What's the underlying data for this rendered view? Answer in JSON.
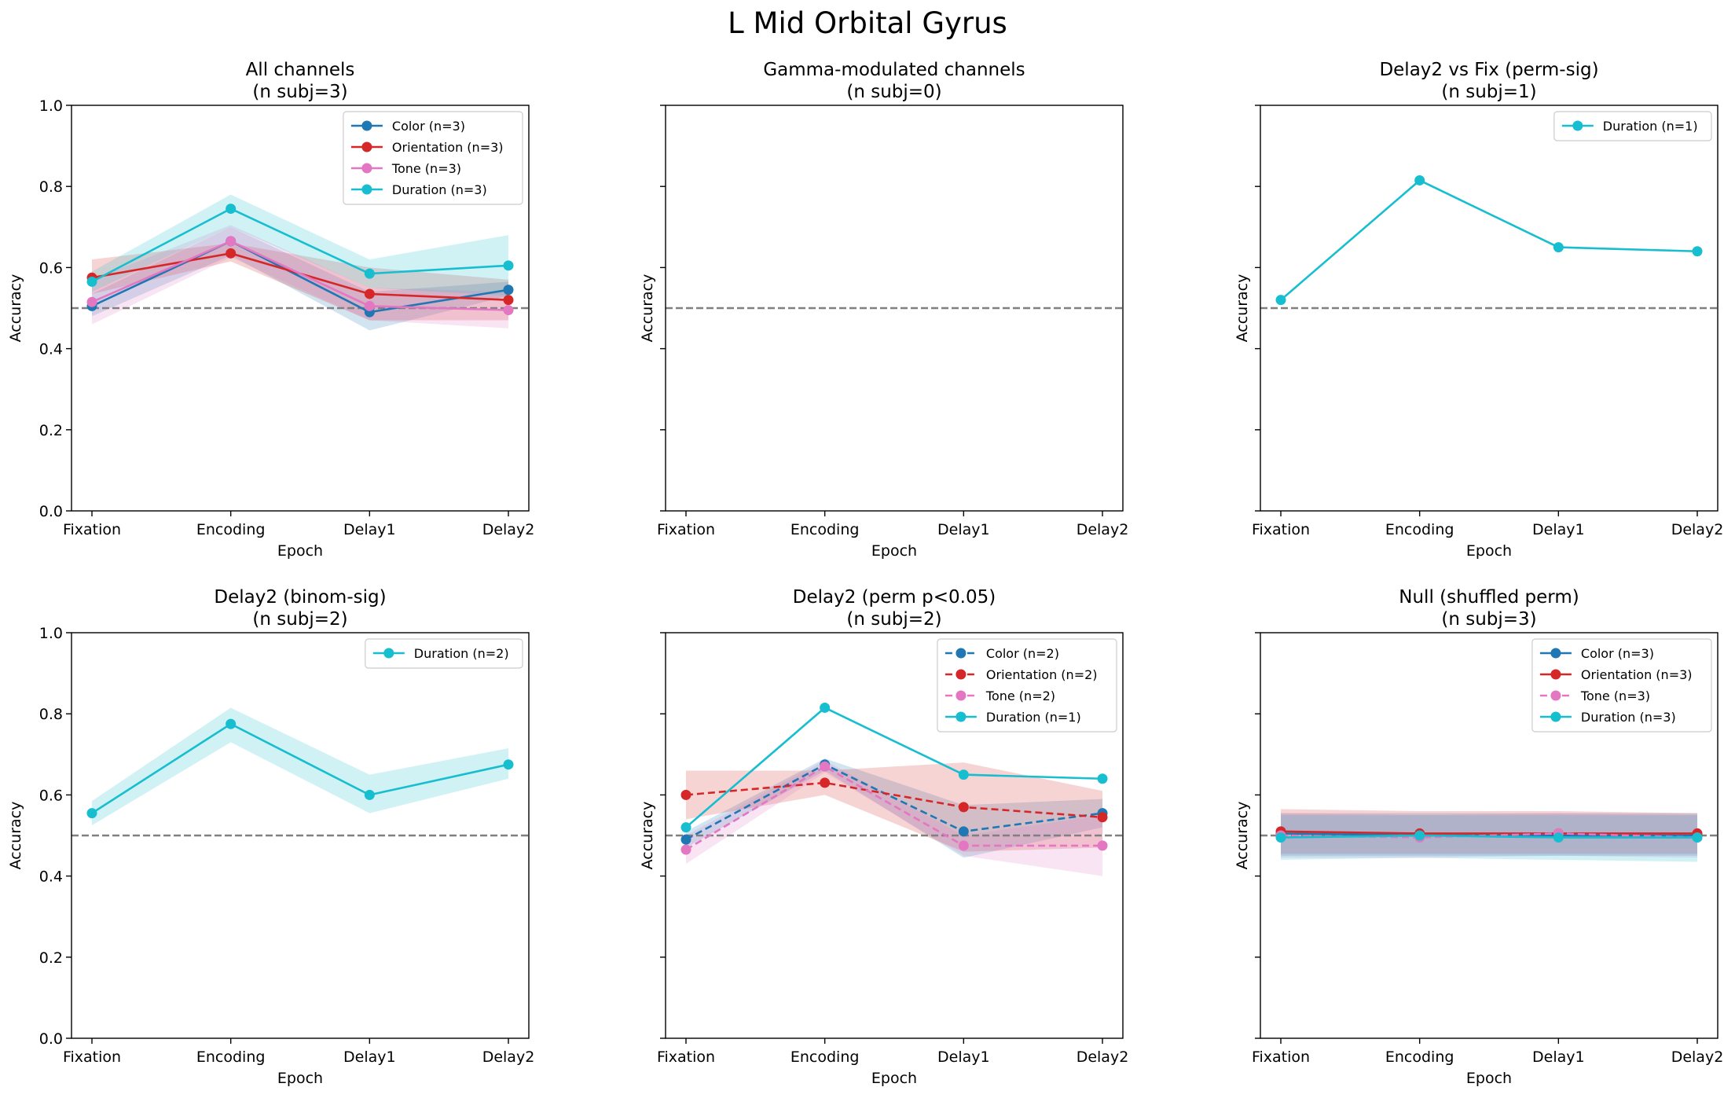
{
  "figure": {
    "title": "L Mid Orbital Gyrus"
  },
  "colors": {
    "Color": "#1f77b4",
    "Orientation": "#d62728",
    "Tone": "#e377c2",
    "Duration": "#17becf",
    "chance_line": "#808080"
  },
  "chart_data": [
    {
      "type": "line",
      "title": "All channels\n(n subj=3)",
      "xlabel": "Epoch",
      "ylabel": "Accuracy",
      "categories": [
        "Fixation",
        "Encoding",
        "Delay1",
        "Delay2"
      ],
      "ylim": [
        0,
        1
      ],
      "yticks": [
        0.0,
        0.2,
        0.4,
        0.6,
        0.8,
        1.0
      ],
      "ytick_labels": [
        "0.0",
        "0.2",
        "0.4",
        "0.6",
        "0.8",
        "1.0"
      ],
      "show_ytick_labels": true,
      "chance": 0.5,
      "grid": false,
      "legend": "top-right",
      "series": [
        {
          "name": "Color (n=3)",
          "key": "Color",
          "dashed": false,
          "values": [
            0.505,
            0.665,
            0.49,
            0.545
          ],
          "lower": [
            0.48,
            0.63,
            0.445,
            0.53
          ],
          "upper": [
            0.535,
            0.7,
            0.54,
            0.565
          ]
        },
        {
          "name": "Orientation (n=3)",
          "key": "Orientation",
          "dashed": false,
          "values": [
            0.575,
            0.635,
            0.535,
            0.52
          ],
          "lower": [
            0.535,
            0.615,
            0.47,
            0.47
          ],
          "upper": [
            0.62,
            0.66,
            0.6,
            0.57
          ]
        },
        {
          "name": "Tone (n=3)",
          "key": "Tone",
          "dashed": false,
          "values": [
            0.515,
            0.665,
            0.505,
            0.495
          ],
          "lower": [
            0.46,
            0.625,
            0.47,
            0.45
          ],
          "upper": [
            0.57,
            0.705,
            0.55,
            0.54
          ]
        },
        {
          "name": "Duration (n=3)",
          "key": "Duration",
          "dashed": false,
          "values": [
            0.565,
            0.745,
            0.585,
            0.605
          ],
          "lower": [
            0.54,
            0.7,
            0.55,
            0.53
          ],
          "upper": [
            0.59,
            0.78,
            0.62,
            0.68
          ]
        }
      ]
    },
    {
      "type": "line",
      "title": "Gamma-modulated channels\n(n subj=0)",
      "xlabel": "Epoch",
      "ylabel": "Accuracy",
      "categories": [
        "Fixation",
        "Encoding",
        "Delay1",
        "Delay2"
      ],
      "ylim": [
        0,
        1
      ],
      "yticks": [
        0.0,
        0.2,
        0.4,
        0.6,
        0.8,
        1.0
      ],
      "ytick_labels": [
        "0.0",
        "0.2",
        "0.4",
        "0.6",
        "0.8",
        "1.0"
      ],
      "show_ytick_labels": false,
      "chance": 0.5,
      "grid": false,
      "legend": "none",
      "series": []
    },
    {
      "type": "line",
      "title": "Delay2 vs Fix (perm-sig)\n(n subj=1)",
      "xlabel": "Epoch",
      "ylabel": "Accuracy",
      "categories": [
        "Fixation",
        "Encoding",
        "Delay1",
        "Delay2"
      ],
      "ylim": [
        0,
        1
      ],
      "yticks": [
        0.0,
        0.2,
        0.4,
        0.6,
        0.8,
        1.0
      ],
      "ytick_labels": [
        "0.0",
        "0.2",
        "0.4",
        "0.6",
        "0.8",
        "1.0"
      ],
      "show_ytick_labels": false,
      "chance": 0.5,
      "grid": false,
      "legend": "top-right",
      "series": [
        {
          "name": "Duration (n=1)",
          "key": "Duration",
          "dashed": false,
          "values": [
            0.52,
            0.815,
            0.65,
            0.64
          ]
        }
      ]
    },
    {
      "type": "line",
      "title": "Delay2 (binom-sig)\n(n subj=2)",
      "xlabel": "Epoch",
      "ylabel": "Accuracy",
      "categories": [
        "Fixation",
        "Encoding",
        "Delay1",
        "Delay2"
      ],
      "ylim": [
        0,
        1
      ],
      "yticks": [
        0.0,
        0.2,
        0.4,
        0.6,
        0.8,
        1.0
      ],
      "ytick_labels": [
        "0.0",
        "0.2",
        "0.4",
        "0.6",
        "0.8",
        "1.0"
      ],
      "show_ytick_labels": true,
      "chance": 0.5,
      "grid": false,
      "legend": "top-right",
      "series": [
        {
          "name": "Duration (n=2)",
          "key": "Duration",
          "dashed": false,
          "values": [
            0.555,
            0.775,
            0.6,
            0.675
          ],
          "lower": [
            0.525,
            0.73,
            0.555,
            0.64
          ],
          "upper": [
            0.585,
            0.815,
            0.65,
            0.715
          ]
        }
      ]
    },
    {
      "type": "line",
      "title": "Delay2 (perm p<0.05)\n(n subj=2)",
      "xlabel": "Epoch",
      "ylabel": "Accuracy",
      "categories": [
        "Fixation",
        "Encoding",
        "Delay1",
        "Delay2"
      ],
      "ylim": [
        0,
        1
      ],
      "yticks": [
        0.0,
        0.2,
        0.4,
        0.6,
        0.8,
        1.0
      ],
      "ytick_labels": [
        "0.0",
        "0.2",
        "0.4",
        "0.6",
        "0.8",
        "1.0"
      ],
      "show_ytick_labels": false,
      "chance": 0.5,
      "grid": false,
      "legend": "top-right",
      "series": [
        {
          "name": "Color (n=2)",
          "key": "Color",
          "dashed": true,
          "values": [
            0.49,
            0.675,
            0.51,
            0.555
          ],
          "lower": [
            0.47,
            0.66,
            0.445,
            0.52
          ],
          "upper": [
            0.51,
            0.69,
            0.575,
            0.59
          ]
        },
        {
          "name": "Orientation (n=2)",
          "key": "Orientation",
          "dashed": true,
          "values": [
            0.6,
            0.63,
            0.57,
            0.545
          ],
          "lower": [
            0.54,
            0.6,
            0.46,
            0.47
          ],
          "upper": [
            0.66,
            0.66,
            0.68,
            0.61
          ]
        },
        {
          "name": "Tone (n=2)",
          "key": "Tone",
          "dashed": true,
          "values": [
            0.465,
            0.67,
            0.475,
            0.475
          ],
          "lower": [
            0.43,
            0.655,
            0.45,
            0.4
          ],
          "upper": [
            0.5,
            0.685,
            0.5,
            0.55
          ]
        },
        {
          "name": "Duration (n=1)",
          "key": "Duration",
          "dashed": false,
          "values": [
            0.52,
            0.815,
            0.65,
            0.64
          ]
        }
      ]
    },
    {
      "type": "line",
      "title": "Null (shuffled perm)\n(n subj=3)",
      "xlabel": "Epoch",
      "ylabel": "Accuracy",
      "categories": [
        "Fixation",
        "Encoding",
        "Delay1",
        "Delay2"
      ],
      "ylim": [
        0,
        1
      ],
      "yticks": [
        0.0,
        0.2,
        0.4,
        0.6,
        0.8,
        1.0
      ],
      "ytick_labels": [
        "0.0",
        "0.2",
        "0.4",
        "0.6",
        "0.8",
        "1.0"
      ],
      "show_ytick_labels": false,
      "chance": 0.5,
      "grid": false,
      "legend": "top-right",
      "series": [
        {
          "name": "Color (n=3)",
          "key": "Color",
          "dashed": false,
          "values": [
            0.505,
            0.5,
            0.5,
            0.5
          ],
          "lower": [
            0.45,
            0.45,
            0.45,
            0.45
          ],
          "upper": [
            0.555,
            0.555,
            0.555,
            0.555
          ]
        },
        {
          "name": "Orientation (n=3)",
          "key": "Orientation",
          "dashed": false,
          "values": [
            0.51,
            0.505,
            0.505,
            0.505
          ],
          "lower": [
            0.455,
            0.455,
            0.455,
            0.455
          ],
          "upper": [
            0.565,
            0.56,
            0.56,
            0.555
          ]
        },
        {
          "name": "Tone (n=3)",
          "key": "Tone",
          "dashed": true,
          "values": [
            0.5,
            0.495,
            0.505,
            0.495
          ],
          "lower": [
            0.445,
            0.445,
            0.45,
            0.445
          ],
          "upper": [
            0.555,
            0.55,
            0.555,
            0.55
          ]
        },
        {
          "name": "Duration (n=3)",
          "key": "Duration",
          "dashed": false,
          "values": [
            0.495,
            0.5,
            0.495,
            0.495
          ],
          "lower": [
            0.44,
            0.445,
            0.44,
            0.435
          ],
          "upper": [
            0.55,
            0.55,
            0.55,
            0.55
          ]
        }
      ]
    }
  ]
}
